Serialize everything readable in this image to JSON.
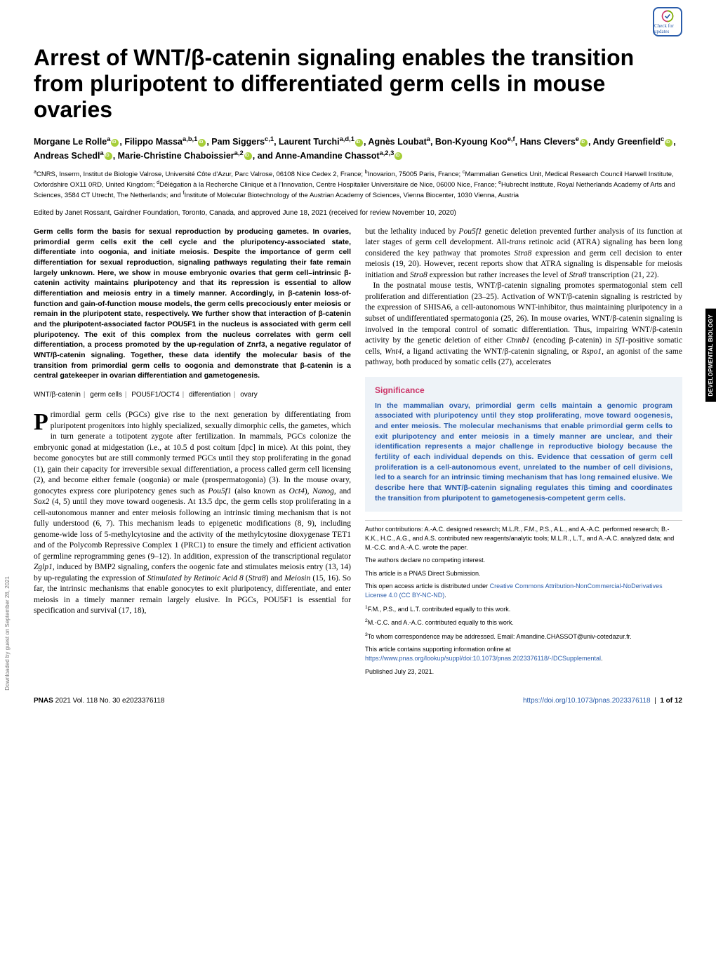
{
  "badge_label": "Check for updates",
  "title": "Arrest of WNT/β-catenin signaling enables the transition from pluripotent to differentiated germ cells in mouse ovaries",
  "authors_html": "Morgane Le Rolle<sup>a</sup><span class='orcid'></span>, Filippo Massa<sup>a,b,1</sup><span class='orcid'></span>, Pam Siggers<sup>c,1</sup>, Laurent Turchi<sup>a,d,1</sup><span class='orcid'></span>, Agnès Loubat<sup>a</sup>, Bon-Kyoung Koo<sup>e,f</sup>, Hans Clevers<sup>e</sup><span class='orcid'></span>, Andy Greenfield<sup>c</sup><span class='orcid'></span>, Andreas Schedl<sup>a</sup><span class='orcid'></span>, Marie-Christine Chaboissier<sup>a,2</sup><span class='orcid'></span>, and Anne-Amandine Chassot<sup>a,2,3</sup><span class='orcid'></span>",
  "affiliations": "<sup>a</sup>CNRS, Inserm, Institut de Biologie Valrose, Université Côte d'Azur, Parc Valrose, 06108 Nice Cedex 2, France; <sup>b</sup>Inovarion, 75005 Paris, France; <sup>c</sup>Mammalian Genetics Unit, Medical Research Council Harwell Institute, Oxfordshire OX11 0RD, United Kingdom; <sup>d</sup>Délégation à la Recherche Clinique et à l'Innovation, Centre Hospitalier Universitaire de Nice, 06000 Nice, France; <sup>e</sup>Hubrecht Institute, Royal Netherlands Academy of Arts and Sciences, 3584 CT Utrecht, The Netherlands; and <sup>f</sup>Institute of Molecular Biotechnology of the Austrian Academy of Sciences, Vienna Biocenter, 1030 Vienna, Austria",
  "edited": "Edited by Janet Rossant, Gairdner Foundation, Toronto, Canada, and approved June 18, 2021 (received for review November 10, 2020)",
  "abstract": "Germ cells form the basis for sexual reproduction by producing gametes. In ovaries, primordial germ cells exit the cell cycle and the pluripotency-associated state, differentiate into oogonia, and initiate meiosis. Despite the importance of germ cell differentiation for sexual reproduction, signaling pathways regulating their fate remain largely unknown. Here, we show in mouse embryonic ovaries that germ cell–intrinsic β-catenin activity maintains pluripotency and that its repression is essential to allow differentiation and meiosis entry in a timely manner. Accordingly, in β-catenin loss-of-function and gain-of-function mouse models, the germ cells precociously enter meiosis or remain in the pluripotent state, respectively. We further show that interaction of β-catenin and the pluripotent-associated factor POU5F1 in the nucleus is associated with germ cell pluripotency. The exit of this complex from the nucleus correlates with germ cell differentiation, a process promoted by the up-regulation of Znrf3, a negative regulator of WNT/β-catenin signaling. Together, these data identify the molecular basis of the transition from primordial germ cells to oogonia and demonstrate that β-catenin is a central gatekeeper in ovarian differentiation and gametogenesis.",
  "keywords": [
    "WNT/β-catenin",
    "germ cells",
    "POU5F1/OCT4",
    "differentiation",
    "ovary"
  ],
  "body_col1": "rimordial germ cells (PGCs) give rise to the next generation by differentiating from pluripotent progenitors into highly specialized, sexually dimorphic cells, the gametes, which in turn generate a totipotent zygote after fertilization. In mammals, PGCs colonize the embryonic gonad at midgestation (i.e., at 10.5 d post coitum [dpc] in mice). At this point, they become gonocytes but are still commonly termed PGCs until they stop proliferating in the gonad (1), gain their capacity for irreversible sexual differentiation, a process called germ cell licensing (2), and become either female (oogonia) or male (prospermatogonia) (3). In the mouse ovary, gonocytes express core pluripotency genes such as <i>Pou5f1</i> (also known as <i>Oct4</i>), <i>Nanog</i>, and <i>Sox2</i> (4, 5) until they move toward oogenesis. At 13.5 dpc, the germ cells stop proliferating in a cell-autonomous manner and enter meiosis following an intrinsic timing mechanism that is not fully understood (6, 7). This mechanism leads to epigenetic modifications (8, 9), including genome-wide loss of 5-methylcytosine and the activity of the methylcytosine dioxygenase TET1 and of the Polycomb Repressive Complex 1 (PRC1) to ensure the timely and efficient activation of germline reprogramming genes (9–12). In addition, expression of the transcriptional regulator <i>Zglp1</i>, induced by BMP2 signaling, confers the oogenic fate and stimulates meiosis entry (13, 14) by up-regulating the expression of <i>Stimulated by Retinoic Acid 8</i> (<i>Stra8</i>) and <i>Meiosin</i> (15, 16). So far, the intrinsic mechanisms that enable gonocytes to exit pluripotency, differentiate, and enter meiosis in a timely manner remain largely elusive. In PGCs, POU5F1 is essential for specification and survival (17, 18),",
  "body_col2_top": "but the lethality induced by <i>Pou5f1</i> genetic deletion prevented further analysis of its function at later stages of germ cell development. All-<i>trans</i> retinoic acid (ATRA) signaling has been long considered the key pathway that promotes <i>Stra8</i> expression and germ cell decision to enter meiosis (19, 20). However, recent reports show that ATRA signaling is dispensable for meiosis initiation and <i>Stra8</i> expression but rather increases the level of <i>Stra8</i> transcription (21, 22).",
  "body_col2_p2": "In the postnatal mouse testis, WNT/β-catenin signaling promotes spermatogonial stem cell proliferation and differentiation (23–25). Activation of WNT/β-catenin signaling is restricted by the expression of SHISA6, a cell-autonomous WNT-inhibitor, thus maintaining pluripotency in a subset of undifferentiated spermatogonia (25, 26). In mouse ovaries, WNT/β-catenin signaling is involved in the temporal control of somatic differentiation. Thus, impairing WNT/β-catenin activity by the genetic deletion of either <i>Ctnnb1</i> (encoding β-catenin) in <i>Sf1</i>-positive somatic cells, <i>Wnt4</i>, a ligand activating the WNT/β-catenin signaling, or <i>Rspo1</i>, an agonist of the same pathway, both produced by somatic cells (27), accelerates",
  "significance": {
    "heading": "Significance",
    "text": "In the mammalian ovary, primordial germ cells maintain a genomic program associated with pluripotency until they stop proliferating, move toward oogenesis, and enter meiosis. The molecular mechanisms that enable primordial germ cells to exit pluripotency and enter meiosis in a timely manner are unclear, and their identification represents a major challenge in reproductive biology because the fertility of each individual depends on this. Evidence that cessation of germ cell proliferation is a cell-autonomous event, unrelated to the number of cell divisions, led to a search for an intrinsic timing mechanism that has long remained elusive. We describe here that WNT/β-catenin signaling regulates this timing and coordinates the transition from pluripotent to gametogenesis-competent germ cells."
  },
  "meta": {
    "contrib": "Author contributions: A.-A.C. designed research; M.L.R., F.M., P.S., A.L., and A.-A.C. performed research; B.-K.K., H.C., A.G., and A.S. contributed new reagents/analytic tools; M.L.R., L.T., and A.-A.C. analyzed data; and M.-C.C. and A.-A.C. wrote the paper.",
    "competing": "The authors declare no competing interest.",
    "direct": "This article is a PNAS Direct Submission.",
    "license": "This open access article is distributed under ",
    "license_link": "Creative Commons Attribution-NonCommercial-NoDerivatives License 4.0 (CC BY-NC-ND)",
    "license_suffix": ".",
    "note1": "<sup>1</sup>F.M., P.S., and L.T. contributed equally to this work.",
    "note2": "<sup>2</sup>M.-C.C. and A.-A.C. contributed equally to this work.",
    "note3": "<sup>3</sup>To whom correspondence may be addressed. Email: Amandine.CHASSOT@univ-cotedazur.fr.",
    "supp": "This article contains supporting information online at ",
    "supp_link": "https://www.pnas.org/lookup/suppl/doi:10.1073/pnas.2023376118/-/DCSupplemental",
    "supp_suffix": ".",
    "published": "Published July 23, 2021."
  },
  "footer": {
    "left": "PNAS 2021 Vol. 118 No. 30 e2023376118",
    "right_link": "https://doi.org/10.1073/pnas.2023376118",
    "right_page": "1 of 12"
  },
  "side_tab": "DEVELOPMENTAL BIOLOGY",
  "downloaded": "Downloaded by guest on September 28, 2021",
  "colors": {
    "link": "#2a5caa",
    "significance_heading": "#cc3366",
    "significance_text": "#2a5caa",
    "significance_bg": "#eef3f8",
    "orcid": "#a6ce39"
  }
}
